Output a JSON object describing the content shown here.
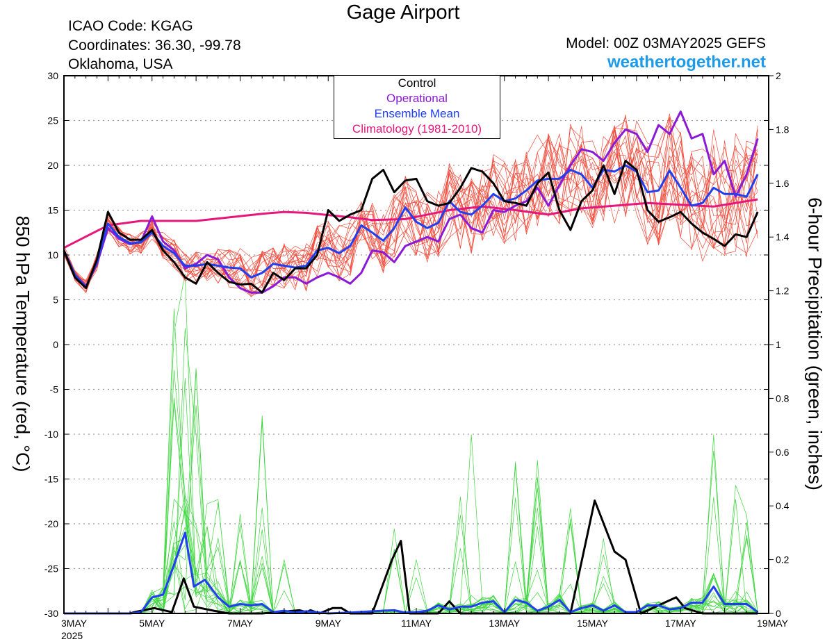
{
  "header": {
    "title": "Gage Airport",
    "icao": "ICAO Code: KGAG",
    "coordinates": "Coordinates: 36.30, -99.78",
    "location": "Oklahoma, USA",
    "model": "Model: 00Z 03MAY2025 GEFS",
    "website": "weathertogether.net"
  },
  "chart_data": {
    "type": "line",
    "title": "Gage Airport",
    "ylabel_left": "850 hPa Temperature (red, °C)",
    "ylabel_right": "6-hour Precipitation (green, inches)",
    "y_left_range": [
      -30,
      30
    ],
    "y_right_range": [
      0,
      2
    ],
    "y_left_ticks": [
      "30",
      "25",
      "20",
      "15",
      "10",
      "5",
      "0",
      "-5",
      "-10",
      "-15",
      "-20",
      "-25",
      "-30"
    ],
    "y_right_ticks": [
      "2",
      "1.8",
      "1.6",
      "1.4",
      "1.2",
      "1",
      "0.8",
      "0.6",
      "0.4",
      "0.2",
      "0"
    ],
    "x_range_days": [
      "3MAY 2025",
      "19MAY 2025"
    ],
    "x_ticks": [
      "3MAY",
      "5MAY",
      "7MAY",
      "9MAY",
      "11MAY",
      "13MAY",
      "15MAY",
      "17MAY",
      "19MAY"
    ],
    "x_year": "2025",
    "grid": true,
    "legend_position": "top-center",
    "legend": [
      {
        "label": "Control",
        "color": "#000000"
      },
      {
        "label": "Operational",
        "color": "#8a1ad6"
      },
      {
        "label": "Ensemble Mean",
        "color": "#1f3ff0"
      },
      {
        "label": "Climatology (1981-2010)",
        "color": "#e6167a"
      }
    ],
    "colors": {
      "members_temp": "#f24a3a",
      "members_precip": "#3ed63e",
      "control": "#000000",
      "operational": "#8a1ad6",
      "mean": "#1f3ff0",
      "climatology": "#e6167a"
    },
    "temperature": {
      "control_anchors": [
        [
          0,
          10.5
        ],
        [
          0.25,
          7.5
        ],
        [
          0.5,
          6.3
        ],
        [
          0.75,
          9.5
        ],
        [
          1,
          14.8
        ],
        [
          1.25,
          12.5
        ],
        [
          1.5,
          11.7
        ],
        [
          1.75,
          11.7
        ],
        [
          2,
          12.8
        ],
        [
          2.25,
          10.5
        ],
        [
          2.5,
          9.2
        ],
        [
          2.75,
          7.5
        ],
        [
          3,
          6.8
        ],
        [
          3.25,
          9.2
        ],
        [
          3.5,
          8.0
        ],
        [
          3.75,
          7.0
        ],
        [
          4,
          6.7
        ],
        [
          4.25,
          6.8
        ],
        [
          4.5,
          5.8
        ],
        [
          4.75,
          8.0
        ],
        [
          5,
          7.2
        ],
        [
          5.25,
          8.5
        ],
        [
          5.5,
          8.5
        ],
        [
          5.75,
          10.0
        ],
        [
          6,
          15.0
        ],
        [
          6.25,
          13.8
        ],
        [
          6.5,
          14.5
        ],
        [
          6.75,
          15.0
        ],
        [
          7,
          18.5
        ],
        [
          7.25,
          19.5
        ],
        [
          7.5,
          17.0
        ],
        [
          7.75,
          18.3
        ],
        [
          8,
          18.5
        ],
        [
          8.25,
          16.0
        ],
        [
          8.5,
          15.5
        ],
        [
          8.75,
          15.8
        ],
        [
          9,
          17.5
        ],
        [
          9.25,
          19.7
        ],
        [
          9.5,
          19.3
        ],
        [
          9.75,
          18.0
        ],
        [
          10,
          16.0
        ],
        [
          10.25,
          15.8
        ],
        [
          10.5,
          15.5
        ],
        [
          10.75,
          18.0
        ],
        [
          11,
          19.2
        ],
        [
          11.25,
          15.0
        ],
        [
          11.5,
          12.8
        ],
        [
          11.75,
          16.0
        ],
        [
          12,
          17.2
        ],
        [
          12.25,
          20.0
        ],
        [
          12.5,
          16.8
        ],
        [
          12.75,
          20.5
        ],
        [
          13,
          19.5
        ],
        [
          13.25,
          15.0
        ],
        [
          13.5,
          13.7
        ],
        [
          13.75,
          14.2
        ],
        [
          14,
          14.8
        ],
        [
          14.25,
          13.5
        ],
        [
          14.5,
          12.5
        ],
        [
          14.75,
          11.8
        ],
        [
          15,
          11.0
        ],
        [
          15.25,
          12.3
        ],
        [
          15.5,
          12.0
        ],
        [
          15.75,
          14.8
        ]
      ],
      "operational_anchors": [
        [
          0,
          10.5
        ],
        [
          0.25,
          7.8
        ],
        [
          0.5,
          6.5
        ],
        [
          0.75,
          9.0
        ],
        [
          1,
          13.0
        ],
        [
          1.25,
          11.8
        ],
        [
          1.5,
          11.2
        ],
        [
          1.75,
          11.5
        ],
        [
          2,
          14.3
        ],
        [
          2.25,
          11.5
        ],
        [
          2.5,
          10.5
        ],
        [
          2.75,
          8.5
        ],
        [
          3,
          9.0
        ],
        [
          3.25,
          10.0
        ],
        [
          3.5,
          9.5
        ],
        [
          3.75,
          7.5
        ],
        [
          4,
          6.3
        ],
        [
          4.25,
          5.8
        ],
        [
          4.5,
          5.8
        ],
        [
          4.75,
          6.5
        ],
        [
          5,
          7.5
        ],
        [
          5.25,
          7.5
        ],
        [
          5.5,
          6.8
        ],
        [
          5.75,
          7.5
        ],
        [
          6,
          8.0
        ],
        [
          6.25,
          7.5
        ],
        [
          6.5,
          6.8
        ],
        [
          6.75,
          8.0
        ],
        [
          7,
          10.5
        ],
        [
          7.25,
          10.3
        ],
        [
          7.5,
          9.2
        ],
        [
          7.75,
          11.0
        ],
        [
          8,
          11.5
        ],
        [
          8.25,
          12.0
        ],
        [
          8.5,
          11.5
        ],
        [
          8.75,
          14.0
        ],
        [
          9,
          14.5
        ],
        [
          9.25,
          13.0
        ],
        [
          9.5,
          12.5
        ],
        [
          9.75,
          15.0
        ],
        [
          10,
          14.8
        ],
        [
          10.25,
          15.5
        ],
        [
          10.5,
          16.0
        ],
        [
          10.75,
          17.5
        ],
        [
          11,
          15.5
        ],
        [
          11.25,
          17.8
        ],
        [
          11.5,
          20.0
        ],
        [
          11.75,
          21.8
        ],
        [
          12,
          21.5
        ],
        [
          12.25,
          20.5
        ],
        [
          12.5,
          22.5
        ],
        [
          12.75,
          24.0
        ],
        [
          13,
          23.5
        ],
        [
          13.25,
          21.5
        ],
        [
          13.5,
          24.5
        ],
        [
          13.75,
          23.5
        ],
        [
          14,
          26.0
        ],
        [
          14.25,
          23.0
        ],
        [
          14.5,
          23.5
        ],
        [
          14.75,
          19.0
        ],
        [
          15,
          20.5
        ],
        [
          15.25,
          16.5
        ],
        [
          15.5,
          19.0
        ],
        [
          15.75,
          23.0
        ]
      ],
      "mean_anchors": [
        [
          0,
          10.5
        ],
        [
          0.25,
          7.8
        ],
        [
          0.5,
          6.4
        ],
        [
          0.75,
          9.2
        ],
        [
          1,
          13.5
        ],
        [
          1.25,
          12.0
        ],
        [
          1.5,
          11.3
        ],
        [
          1.75,
          11.4
        ],
        [
          2,
          12.5
        ],
        [
          2.25,
          11.0
        ],
        [
          2.5,
          10.2
        ],
        [
          2.75,
          8.8
        ],
        [
          3,
          8.8
        ],
        [
          3.25,
          9.0
        ],
        [
          3.5,
          8.8
        ],
        [
          3.75,
          8.6
        ],
        [
          4,
          8.5
        ],
        [
          4.25,
          7.5
        ],
        [
          4.5,
          8.0
        ],
        [
          4.75,
          9.0
        ],
        [
          5,
          8.8
        ],
        [
          5.25,
          8.6
        ],
        [
          5.5,
          8.8
        ],
        [
          5.75,
          10.5
        ],
        [
          6,
          10.8
        ],
        [
          6.25,
          10.2
        ],
        [
          6.5,
          11.0
        ],
        [
          6.75,
          13.3
        ],
        [
          7,
          12.5
        ],
        [
          7.25,
          11.6
        ],
        [
          7.5,
          13.0
        ],
        [
          7.75,
          15.3
        ],
        [
          8,
          13.7
        ],
        [
          8.25,
          13.0
        ],
        [
          8.5,
          13.6
        ],
        [
          8.75,
          16.0
        ],
        [
          9,
          14.8
        ],
        [
          9.25,
          14.5
        ],
        [
          9.5,
          15.5
        ],
        [
          9.75,
          16.8
        ],
        [
          10,
          16.0
        ],
        [
          10.25,
          16.3
        ],
        [
          10.5,
          17.2
        ],
        [
          10.75,
          18.3
        ],
        [
          11,
          18.5
        ],
        [
          11.25,
          18.5
        ],
        [
          11.5,
          19.5
        ],
        [
          11.75,
          19.0
        ],
        [
          12,
          17.5
        ],
        [
          12.25,
          19.5
        ],
        [
          12.5,
          19.3
        ],
        [
          12.75,
          20.0
        ],
        [
          13,
          19.3
        ],
        [
          13.25,
          17.0
        ],
        [
          13.5,
          17.2
        ],
        [
          13.75,
          19.4
        ],
        [
          14,
          17.5
        ],
        [
          14.25,
          15.5
        ],
        [
          14.5,
          15.8
        ],
        [
          14.75,
          17.5
        ],
        [
          15,
          16.8
        ],
        [
          15.25,
          16.8
        ],
        [
          15.5,
          16.5
        ],
        [
          15.75,
          19.0
        ]
      ],
      "climatology_anchors": [
        [
          0,
          10.8
        ],
        [
          1,
          13.3
        ],
        [
          1.75,
          13.8
        ],
        [
          2.5,
          13.8
        ],
        [
          3,
          13.8
        ],
        [
          4.5,
          14.6
        ],
        [
          5,
          14.8
        ],
        [
          5.5,
          14.7
        ],
        [
          6.5,
          14.2
        ],
        [
          7,
          13.9
        ],
        [
          7.75,
          14.0
        ],
        [
          8.75,
          15.0
        ],
        [
          9.5,
          15.4
        ],
        [
          10.25,
          15.0
        ],
        [
          11,
          14.5
        ],
        [
          11.75,
          15.2
        ],
        [
          12.5,
          15.5
        ],
        [
          13.25,
          15.8
        ],
        [
          14,
          15.6
        ],
        [
          14.75,
          15.4
        ],
        [
          15.75,
          16.2
        ]
      ]
    },
    "precipitation": {
      "control_anchors": [
        [
          0,
          0
        ],
        [
          1.5,
          0
        ],
        [
          1.6,
          0.005
        ],
        [
          2.05,
          0.02
        ],
        [
          2.45,
          0.005
        ],
        [
          2.72,
          0.13
        ],
        [
          2.95,
          0.025
        ],
        [
          3.4,
          0.01
        ],
        [
          3.75,
          0.0
        ],
        [
          4.5,
          0.0
        ],
        [
          4.85,
          0.005
        ],
        [
          5.35,
          0.012
        ],
        [
          5.5,
          0.005
        ],
        [
          5.6,
          0.012
        ],
        [
          5.8,
          0.0
        ],
        [
          6.1,
          0.02
        ],
        [
          6.3,
          0.02
        ],
        [
          6.5,
          0.0
        ],
        [
          7,
          0.0
        ],
        [
          7.45,
          0.2
        ],
        [
          7.65,
          0.27
        ],
        [
          7.85,
          0.0
        ],
        [
          8.5,
          0.0
        ],
        [
          8.75,
          0.045
        ],
        [
          9.0,
          0.0
        ],
        [
          10.5,
          0.0
        ],
        [
          11.0,
          0.0
        ],
        [
          11.5,
          0.0
        ],
        [
          12.05,
          0.42
        ],
        [
          12.5,
          0.23
        ],
        [
          12.75,
          0.2
        ],
        [
          13.1,
          0.0
        ],
        [
          13.9,
          0.06
        ],
        [
          14.1,
          0.02
        ],
        [
          14.5,
          0.0
        ],
        [
          15.75,
          0.0
        ]
      ],
      "mean_anchors": [
        [
          0,
          0
        ],
        [
          1.5,
          0
        ],
        [
          1.75,
          0.005
        ],
        [
          2.0,
          0.06
        ],
        [
          2.25,
          0.07
        ],
        [
          2.5,
          0.18
        ],
        [
          2.75,
          0.3
        ],
        [
          2.95,
          0.1
        ],
        [
          3.2,
          0.125
        ],
        [
          3.5,
          0.06
        ],
        [
          3.75,
          0.025
        ],
        [
          4.0,
          0.035
        ],
        [
          4.25,
          0.03
        ],
        [
          4.5,
          0.035
        ],
        [
          4.75,
          0.005
        ],
        [
          5.0,
          0.01
        ],
        [
          5.25,
          0.003
        ],
        [
          5.5,
          0.008
        ],
        [
          6.0,
          0.0
        ],
        [
          6.5,
          0.003
        ],
        [
          7.0,
          0.008
        ],
        [
          7.5,
          0.012
        ],
        [
          7.75,
          0.003
        ],
        [
          8.0,
          0.005
        ],
        [
          8.25,
          0.01
        ],
        [
          8.5,
          0.03
        ],
        [
          8.75,
          0.015
        ],
        [
          9.0,
          0.025
        ],
        [
          9.25,
          0.025
        ],
        [
          9.5,
          0.04
        ],
        [
          9.75,
          0.045
        ],
        [
          10.0,
          0.005
        ],
        [
          10.25,
          0.05
        ],
        [
          10.5,
          0.04
        ],
        [
          10.75,
          0.01
        ],
        [
          11.0,
          0.025
        ],
        [
          11.25,
          0.05
        ],
        [
          11.5,
          0.005
        ],
        [
          11.75,
          0.02
        ],
        [
          12.0,
          0.03
        ],
        [
          12.25,
          0.01
        ],
        [
          12.5,
          0.03
        ],
        [
          12.75,
          0.005
        ],
        [
          13.0,
          0.005
        ],
        [
          13.25,
          0.03
        ],
        [
          13.5,
          0.03
        ],
        [
          13.75,
          0.015
        ],
        [
          14.0,
          0.02
        ],
        [
          14.25,
          0.04
        ],
        [
          14.5,
          0.04
        ],
        [
          14.75,
          0.1
        ],
        [
          15.0,
          0.035
        ],
        [
          15.25,
          0.035
        ],
        [
          15.5,
          0.035
        ],
        [
          15.75,
          0.005
        ]
      ]
    }
  }
}
